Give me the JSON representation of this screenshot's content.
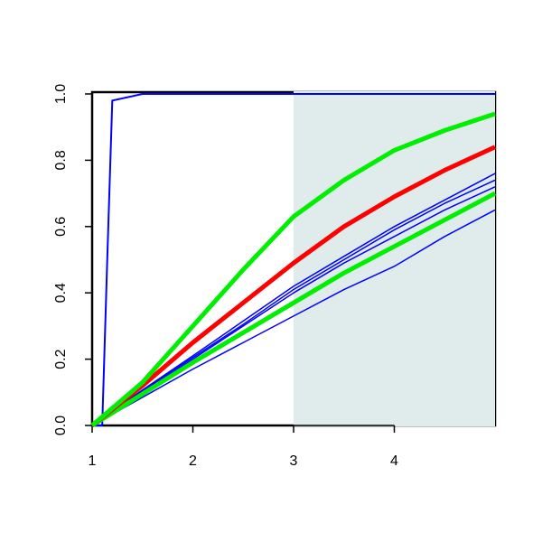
{
  "chart_data": {
    "type": "line",
    "x": [
      1,
      1.1,
      1.15,
      1.2,
      1.5,
      2,
      2.5,
      3,
      3.5,
      4,
      4.5,
      5
    ],
    "xlim": [
      1,
      5
    ],
    "ylim": [
      0,
      1
    ],
    "xticks": [
      1,
      2,
      3,
      4
    ],
    "yticks": [
      {
        "value": 0,
        "label": "0.0"
      },
      0.2,
      0.4,
      0.6,
      0.8,
      {
        "value": 1,
        "label": "1.0"
      }
    ],
    "shaded_xrange": [
      3,
      5
    ],
    "shade_color": "#e0ecec",
    "series": [
      {
        "color": "#0000ff",
        "width": 2,
        "values": [
          0,
          0,
          0.5,
          0.98,
          1,
          1,
          1,
          1,
          1,
          1,
          1,
          1
        ]
      },
      {
        "color": "#0000ff",
        "width": 1.5,
        "values": [
          0,
          0.017,
          0.025,
          0.034,
          0.085,
          0.17,
          0.25,
          0.33,
          0.41,
          0.48,
          0.57,
          0.65
        ]
      },
      {
        "color": "#0000ff",
        "width": 1.5,
        "values": [
          0,
          0.02,
          0.03,
          0.04,
          0.1,
          0.2,
          0.3,
          0.4,
          0.49,
          0.57,
          0.65,
          0.72
        ]
      },
      {
        "color": "#0000ff",
        "width": 1.5,
        "values": [
          0,
          0.021,
          0.031,
          0.041,
          0.104,
          0.205,
          0.305,
          0.41,
          0.5,
          0.59,
          0.67,
          0.74
        ]
      },
      {
        "color": "#0000ff",
        "width": 1.5,
        "values": [
          0,
          0.022,
          0.032,
          0.043,
          0.107,
          0.21,
          0.315,
          0.42,
          0.51,
          0.6,
          0.68,
          0.76
        ]
      },
      {
        "color": "#00ee00",
        "width": 5,
        "values": [
          0,
          0.019,
          0.028,
          0.038,
          0.095,
          0.19,
          0.28,
          0.37,
          0.46,
          0.54,
          0.62,
          0.7
        ]
      },
      {
        "color": "#ff0000",
        "width": 5,
        "values": [
          0,
          0.024,
          0.036,
          0.048,
          0.12,
          0.25,
          0.37,
          0.49,
          0.6,
          0.69,
          0.77,
          0.84
        ]
      },
      {
        "color": "#00ee00",
        "width": 5,
        "values": [
          0,
          0.026,
          0.039,
          0.052,
          0.13,
          0.3,
          0.47,
          0.63,
          0.74,
          0.83,
          0.89,
          0.94
        ]
      }
    ]
  }
}
